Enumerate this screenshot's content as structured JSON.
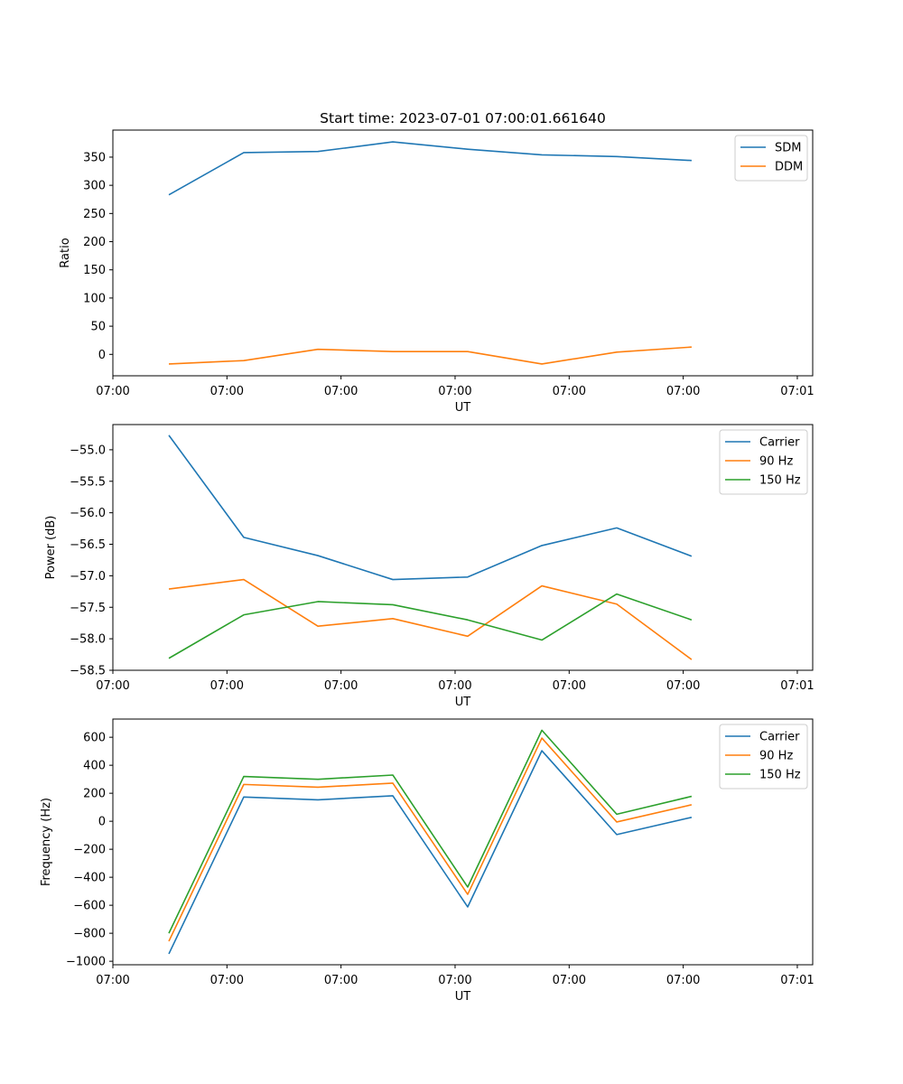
{
  "chart_data": [
    {
      "type": "line",
      "title": "Start time: 2023-07-01 07:00:01.661640",
      "xlabel": "UT",
      "ylabel": "Ratio",
      "xlim": [
        0,
        1
      ],
      "x": [
        0.08,
        0.187,
        0.293,
        0.4,
        0.507,
        0.613,
        0.72,
        0.827
      ],
      "xticks": [
        0.0,
        0.163,
        0.326,
        0.489,
        0.652,
        0.815,
        0.978
      ],
      "xticklabels": [
        "07:00",
        "07:00",
        "07:00",
        "07:00",
        "07:00",
        "07:00",
        "07:01"
      ],
      "ylim": [
        -38,
        398
      ],
      "yticks": [
        0,
        50,
        100,
        150,
        200,
        250,
        300,
        350
      ],
      "yticklabels": [
        "0",
        "50",
        "100",
        "150",
        "200",
        "250",
        "300",
        "350"
      ],
      "legend_position": "upper-right",
      "series": [
        {
          "name": "SDM",
          "color": "#1f77b4",
          "values": [
            283,
            358,
            360,
            377,
            364,
            354,
            351,
            344
          ]
        },
        {
          "name": "DDM",
          "color": "#ff7f0e",
          "values": [
            -17,
            -11,
            9,
            5,
            5,
            -17,
            4,
            13
          ]
        }
      ]
    },
    {
      "type": "line",
      "title": "",
      "xlabel": "UT",
      "ylabel": "Power (dB)",
      "xlim": [
        0,
        1
      ],
      "x": [
        0.08,
        0.187,
        0.293,
        0.4,
        0.507,
        0.613,
        0.72,
        0.827
      ],
      "xticks": [
        0.0,
        0.163,
        0.326,
        0.489,
        0.652,
        0.815,
        0.978
      ],
      "xticklabels": [
        "07:00",
        "07:00",
        "07:00",
        "07:00",
        "07:00",
        "07:00",
        "07:01"
      ],
      "ylim": [
        -58.5,
        -54.6
      ],
      "yticks": [
        -58.5,
        -58.0,
        -57.5,
        -57.0,
        -56.5,
        -56.0,
        -55.5,
        -55.0
      ],
      "yticklabels": [
        "−58.5",
        "−58.0",
        "−57.5",
        "−57.0",
        "−56.5",
        "−56.0",
        "−55.5",
        "−55.0"
      ],
      "legend_position": "upper-right",
      "series": [
        {
          "name": "Carrier",
          "color": "#1f77b4",
          "values": [
            -54.77,
            -56.39,
            -56.68,
            -57.06,
            -57.02,
            -56.52,
            -56.24,
            -56.69
          ]
        },
        {
          "name": "90 Hz",
          "color": "#ff7f0e",
          "values": [
            -57.21,
            -57.06,
            -57.8,
            -57.68,
            -57.96,
            -57.16,
            -57.45,
            -58.33
          ]
        },
        {
          "name": "150 Hz",
          "color": "#2ca02c",
          "values": [
            -58.31,
            -57.62,
            -57.41,
            -57.46,
            -57.7,
            -58.02,
            -57.29,
            -57.7
          ]
        }
      ]
    },
    {
      "type": "line",
      "title": "",
      "xlabel": "UT",
      "ylabel": "Frequency (Hz)",
      "xlim": [
        0,
        1
      ],
      "x": [
        0.08,
        0.187,
        0.293,
        0.4,
        0.507,
        0.613,
        0.72,
        0.827
      ],
      "xticks": [
        0.0,
        0.163,
        0.326,
        0.489,
        0.652,
        0.815,
        0.978
      ],
      "xticklabels": [
        "07:00",
        "07:00",
        "07:00",
        "07:00",
        "07:00",
        "07:00",
        "07:01"
      ],
      "ylim": [
        -1025,
        730
      ],
      "yticks": [
        -1000,
        -800,
        -600,
        -400,
        -200,
        0,
        200,
        400,
        600
      ],
      "yticklabels": [
        "−1000",
        "−800",
        "−600",
        "−400",
        "−200",
        "0",
        "200",
        "400",
        "600"
      ],
      "legend_position": "upper-right",
      "series": [
        {
          "name": "Carrier",
          "color": "#1f77b4",
          "values": [
            -947,
            173,
            153,
            182,
            -612,
            504,
            -95,
            28
          ]
        },
        {
          "name": "90 Hz",
          "color": "#ff7f0e",
          "values": [
            -857,
            263,
            243,
            272,
            -522,
            594,
            -5,
            118
          ]
        },
        {
          "name": "150 Hz",
          "color": "#2ca02c",
          "values": [
            -800,
            320,
            300,
            330,
            -470,
            650,
            50,
            178
          ]
        }
      ]
    }
  ]
}
